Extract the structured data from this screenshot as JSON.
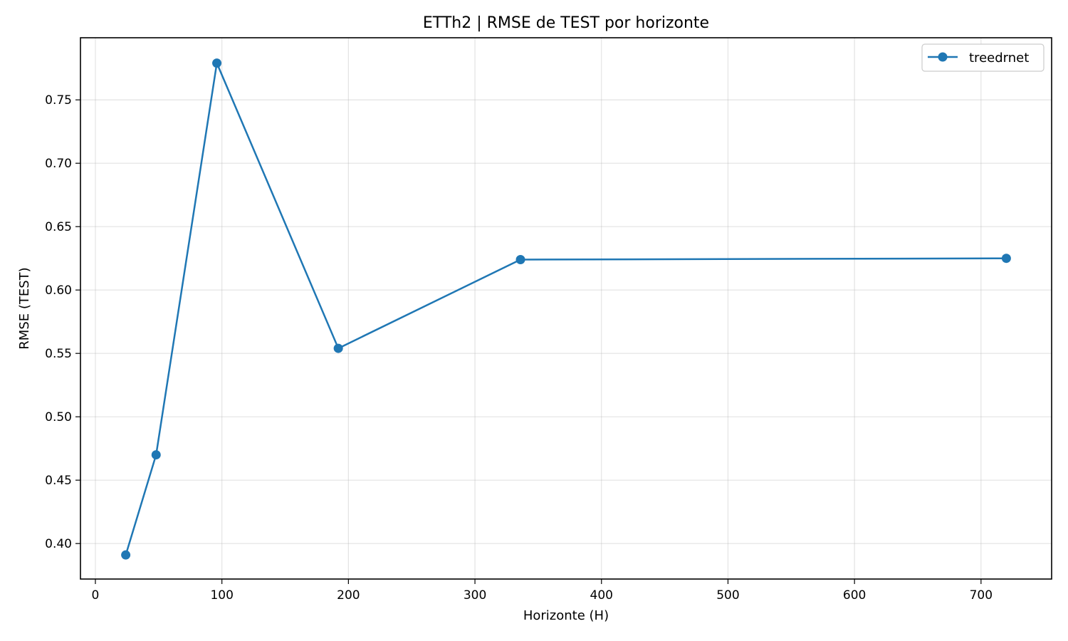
{
  "chart_data": {
    "type": "line",
    "title": "ETTh2 | RMSE de TEST por horizonte",
    "xlabel": "Horizonte (H)",
    "ylabel": "RMSE (TEST)",
    "xlim": [
      -11.8,
      755.8
    ],
    "ylim": [
      0.372,
      0.799
    ],
    "xticks": [
      0,
      100,
      200,
      300,
      400,
      500,
      600,
      700
    ],
    "xtick_labels": [
      "0",
      "100",
      "200",
      "300",
      "400",
      "500",
      "600",
      "700"
    ],
    "yticks": [
      0.4,
      0.45,
      0.5,
      0.55,
      0.6,
      0.65,
      0.7,
      0.75
    ],
    "ytick_labels": [
      "0.40",
      "0.45",
      "0.50",
      "0.55",
      "0.60",
      "0.65",
      "0.70",
      "0.75"
    ],
    "grid": true,
    "legend_position": "top-right",
    "series": [
      {
        "name": "treedrnet",
        "color": "#1f77b4",
        "x": [
          24,
          48,
          96,
          192,
          336,
          720
        ],
        "y": [
          0.391,
          0.47,
          0.779,
          0.554,
          0.624,
          0.625
        ]
      }
    ]
  }
}
